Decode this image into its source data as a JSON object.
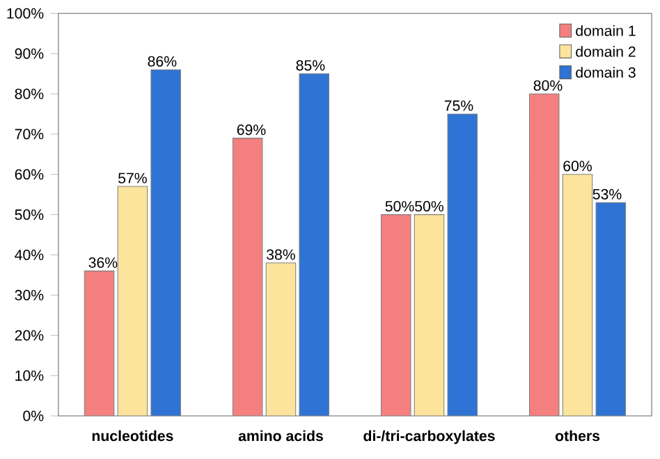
{
  "chart_data": {
    "type": "bar",
    "categories": [
      "nucleotides",
      "amino acids",
      "di-/tri-carboxylates",
      "others"
    ],
    "series": [
      {
        "name": "domain 1",
        "color": "#f47f7f",
        "values": [
          36,
          69,
          50,
          80
        ],
        "value_labels": [
          "36%",
          "69%",
          "50%",
          "80%"
        ]
      },
      {
        "name": "domain 2",
        "color": "#fde49c",
        "values": [
          57,
          38,
          50,
          60
        ],
        "value_labels": [
          "57%",
          "38%",
          "50%",
          "60%"
        ]
      },
      {
        "name": "domain 3",
        "color": "#2f74d4",
        "values": [
          86,
          85,
          75,
          53
        ],
        "value_labels": [
          "86%",
          "85%",
          "75%",
          "53%"
        ]
      }
    ],
    "ylim": [
      0,
      100
    ],
    "yticks": [
      {
        "value": 0,
        "label": "0%"
      },
      {
        "value": 10,
        "label": "10%"
      },
      {
        "value": 20,
        "label": "20%"
      },
      {
        "value": 30,
        "label": "30%"
      },
      {
        "value": 40,
        "label": "40%"
      },
      {
        "value": 50,
        "label": "50%"
      },
      {
        "value": 60,
        "label": "60%"
      },
      {
        "value": 70,
        "label": "70%"
      },
      {
        "value": 80,
        "label": "80%"
      },
      {
        "value": 90,
        "label": "90%"
      },
      {
        "value": 100,
        "label": "100%"
      }
    ],
    "legend": "top right"
  }
}
